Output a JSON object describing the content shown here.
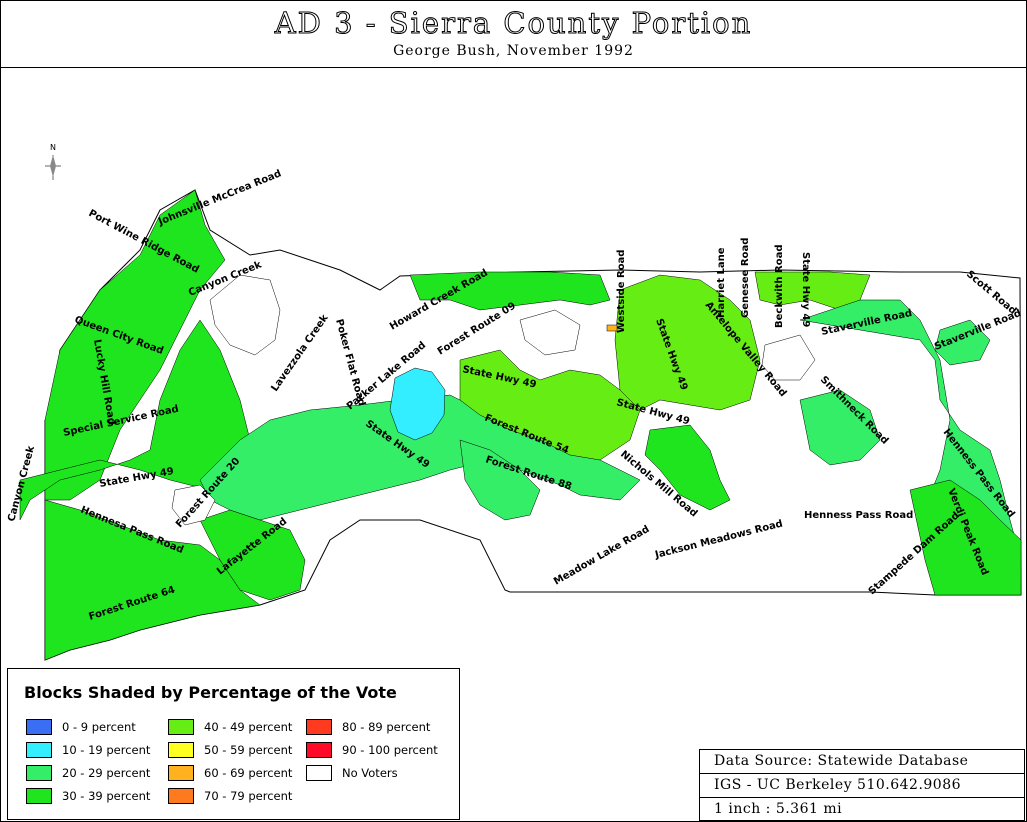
{
  "title": "AD 3 - Sierra County Portion",
  "subtitle": "George Bush, November 1992",
  "north_label": "N",
  "roads": [
    "Port Wine Ridge Road",
    "Johnsville McCrea Road",
    "Canyon Creek",
    "Queen City Road",
    "Lucky Hill Road",
    "Special Service Road",
    "State Hwy 49",
    "Canyon Creek",
    "Hennesa Pass Road",
    "Forest Route 20",
    "Lafayette Road",
    "Forest Route 64",
    "Lavezzola Creek",
    "Poker Flat Road",
    "Howard Creek Road",
    "Forest Route 09",
    "Packer Lake Road",
    "State Hwy 49",
    "State Hwy 49",
    "Forest Route 54",
    "Forest Route 88",
    "Westside Road",
    "State Hwy 49",
    "State Hwy 49",
    "Harriet Lane",
    "Genesee Road",
    "Beckwith Road",
    "State Hwy 49",
    "Antelope Valley Road",
    "Staverville Road",
    "Smithneck Road",
    "Scott Road",
    "Staverville Road",
    "Henness Pass Road",
    "Nichols Mill Road",
    "Jackson Meadows Road",
    "Meadow Lake Road",
    "Henness Pass Road",
    "Stampede Dam Road",
    "Verdi Peak Road"
  ],
  "legend": {
    "title": "Blocks Shaded by Percentage of the Vote",
    "items": [
      {
        "label": "0 - 9 percent",
        "color": "#3a6ff5"
      },
      {
        "label": "10 - 19 percent",
        "color": "#33eeff"
      },
      {
        "label": "20 - 29 percent",
        "color": "#33ee66"
      },
      {
        "label": "30 - 39 percent",
        "color": "#1ee51e"
      },
      {
        "label": "40 - 49 percent",
        "color": "#66ee14"
      },
      {
        "label": "50 - 59 percent",
        "color": "#ffff22"
      },
      {
        "label": "60 - 69 percent",
        "color": "#ffb21e"
      },
      {
        "label": "70 - 79 percent",
        "color": "#ff7a1e"
      },
      {
        "label": "80 - 89 percent",
        "color": "#ff3a1e"
      },
      {
        "label": "90 - 100 percent",
        "color": "#ff0a28"
      },
      {
        "label": "No Voters",
        "color": "#ffffff"
      }
    ]
  },
  "source": {
    "line1": "Data Source: Statewide Database",
    "line2": "IGS - UC Berkeley 510.642.9086",
    "line3": "1 inch : 5.361 mi"
  }
}
